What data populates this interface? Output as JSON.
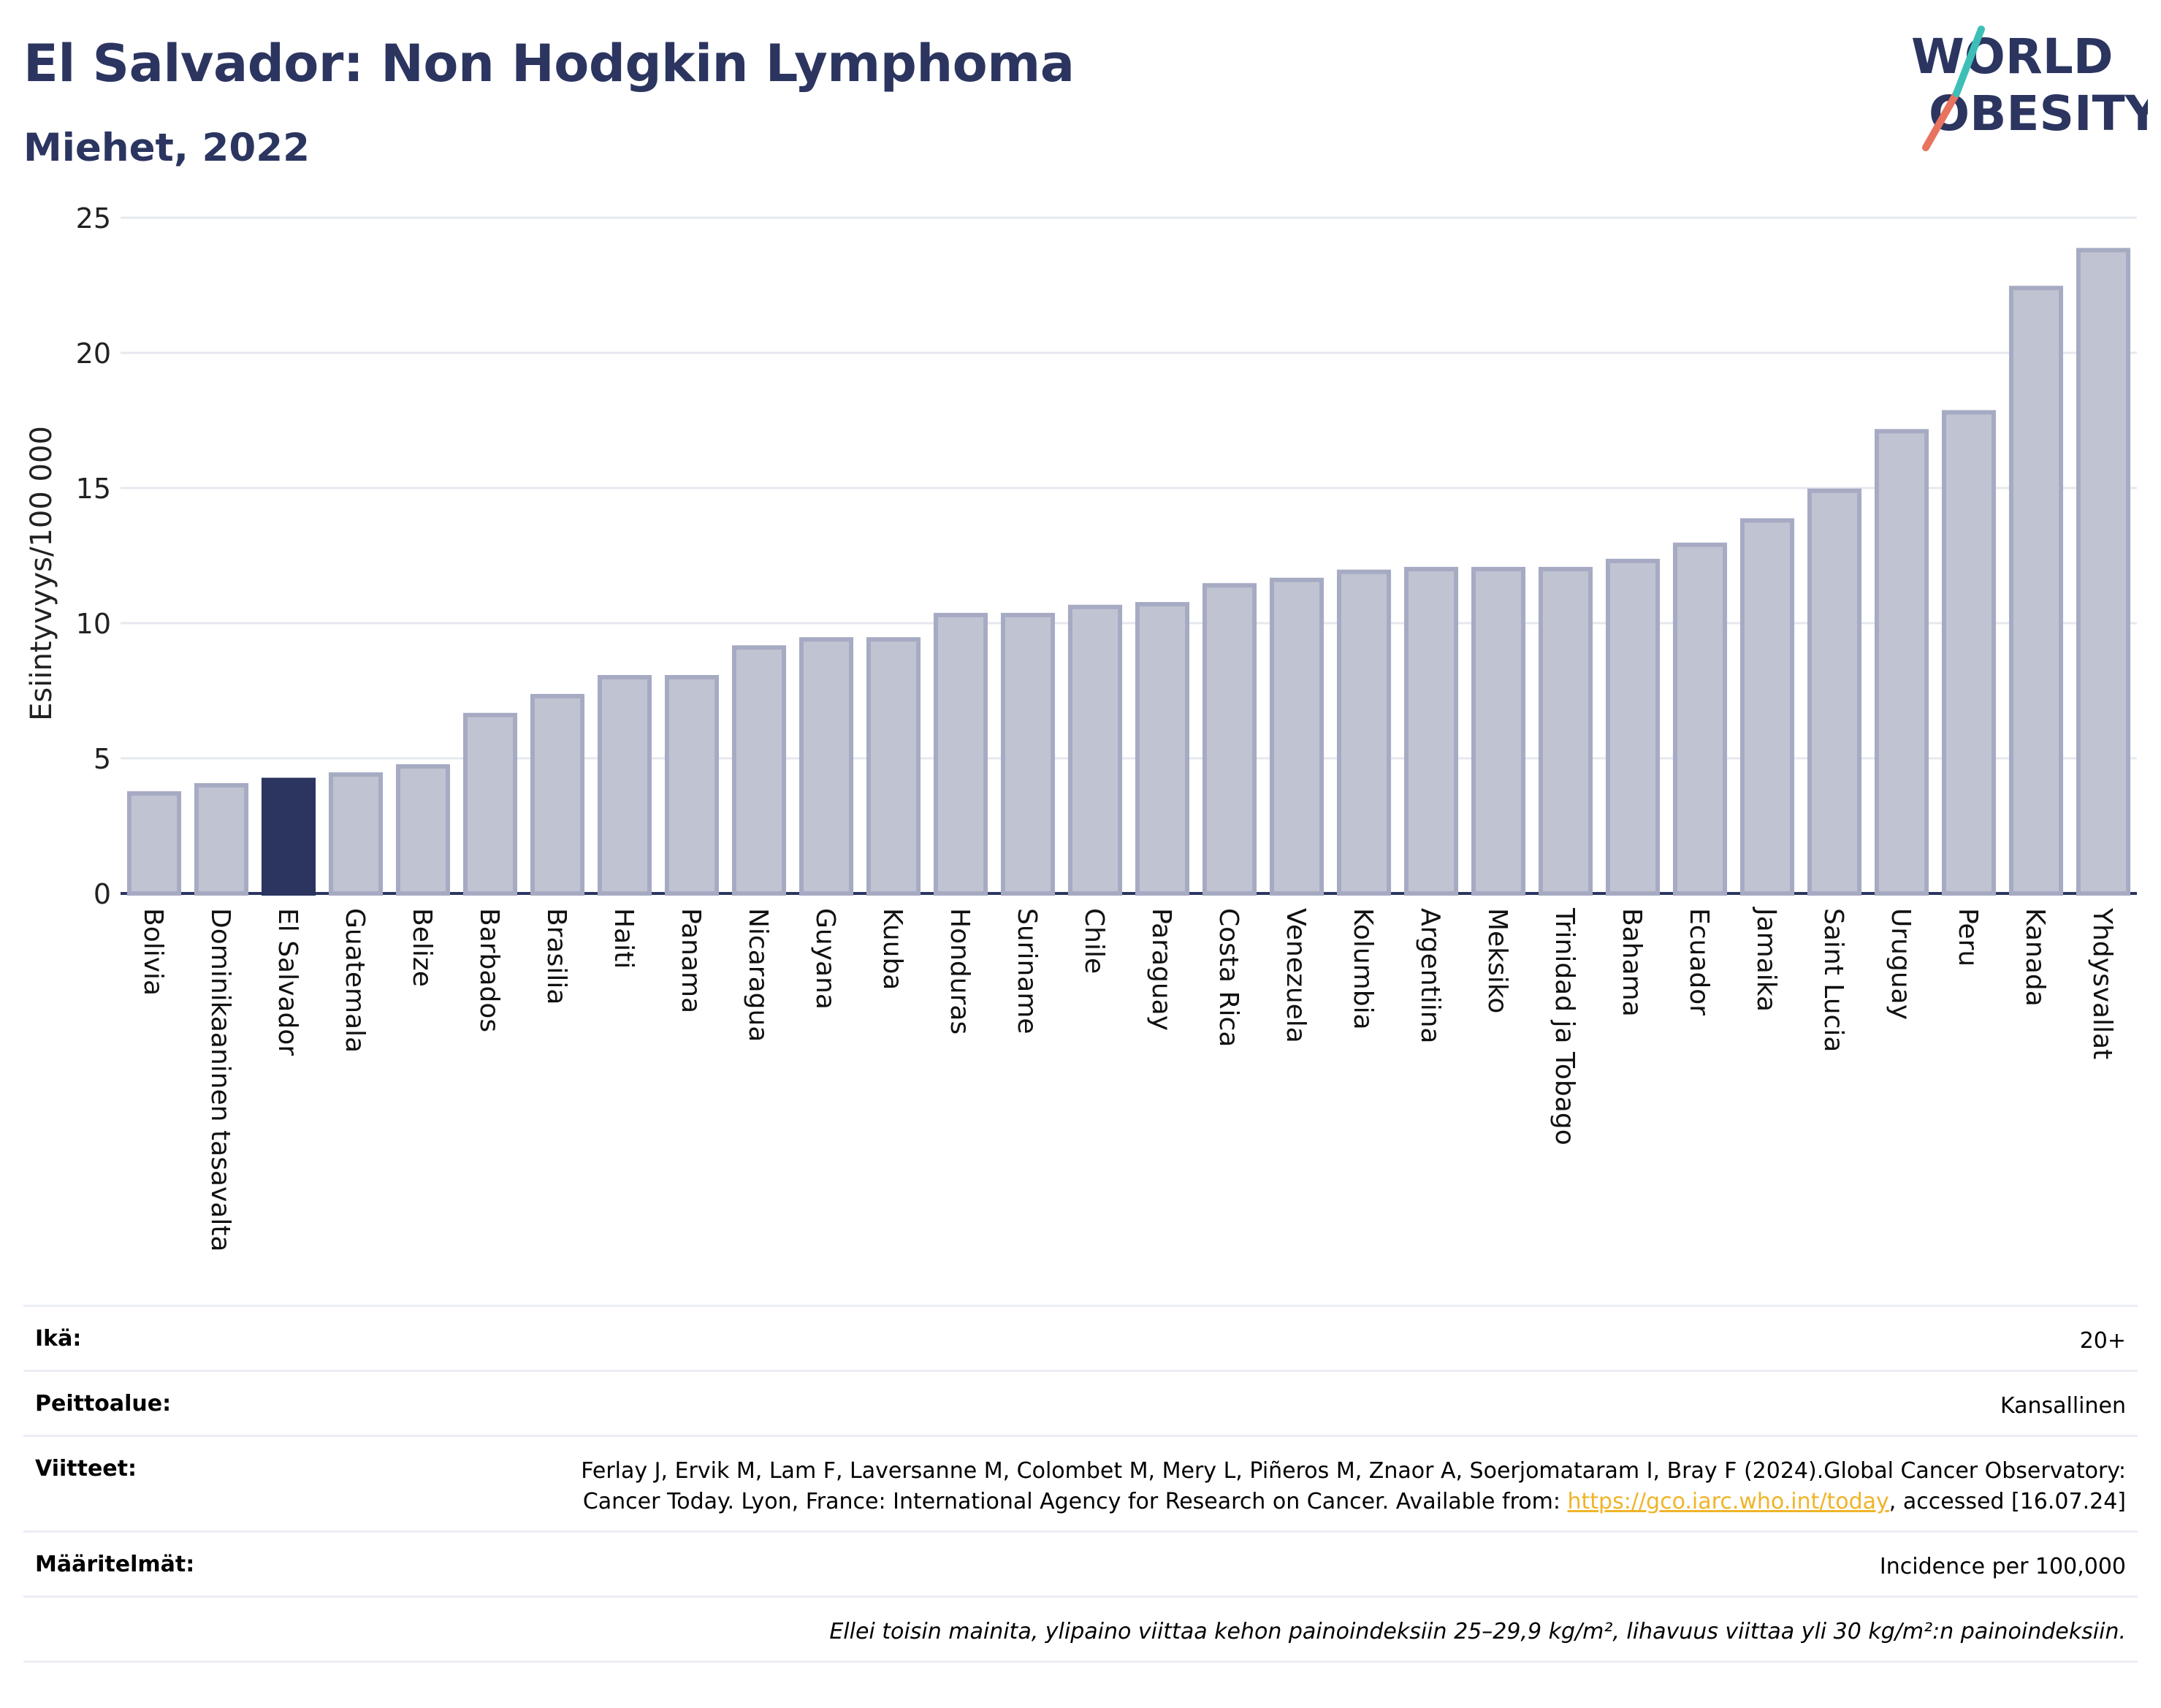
{
  "header": {
    "title": "El Salvador: Non Hodgkin Lymphoma",
    "subtitle": "Miehet, 2022"
  },
  "logo": {
    "line1": "WORLD",
    "line2": "OBESITY"
  },
  "colors": {
    "highlight": "#2b3560",
    "bar": "#c0c3d1",
    "bar_border": "#a6abc3",
    "title": "#2b3560"
  },
  "chart_data": {
    "type": "bar",
    "ylabel": "Esiintyvyys/100 000",
    "ylim": [
      0,
      25
    ],
    "yticks": [
      0,
      5,
      10,
      15,
      20,
      25
    ],
    "grid": true,
    "highlight": "El Salvador",
    "categories": [
      "Bolivia",
      "Dominikaaninen tasavalta",
      "El Salvador",
      "Guatemala",
      "Belize",
      "Barbados",
      "Brasilia",
      "Haiti",
      "Panama",
      "Nicaragua",
      "Guyana",
      "Kuuba",
      "Honduras",
      "Suriname",
      "Chile",
      "Paraguay",
      "Costa Rica",
      "Venezuela",
      "Kolumbia",
      "Argentiina",
      "Meksiko",
      "Trinidad ja Tobago",
      "Bahama",
      "Ecuador",
      "Jamaika",
      "Saint Lucia",
      "Uruguay",
      "Peru",
      "Kanada",
      "Yhdysvallat"
    ],
    "values": [
      3.7,
      4.0,
      4.2,
      4.4,
      4.7,
      6.6,
      7.3,
      8.0,
      8.0,
      9.1,
      9.4,
      9.4,
      10.3,
      10.3,
      10.6,
      10.7,
      11.4,
      11.6,
      11.9,
      12.0,
      12.0,
      12.0,
      12.3,
      12.9,
      13.8,
      14.9,
      17.1,
      17.8,
      22.4,
      23.8
    ]
  },
  "meta": {
    "age_label": "Ikä:",
    "age_value": "20+",
    "coverage_label": "Peittoalue:",
    "coverage_value": "Kansallinen",
    "refs_label": "Viitteet:",
    "refs_text_1": "Ferlay J, Ervik M, Lam F, Laversanne M, Colombet M, Mery L, Piñeros M, Znaor A, Soerjomataram I, Bray F (2024).Global Cancer Observatory: Cancer Today. Lyon, France: International Agency for Research on Cancer. Available from: ",
    "refs_link": "https://gco.iarc.who.int/today",
    "refs_text_2": ", accessed [16.07.24]",
    "definitions_label": "Määritelmät:",
    "definitions_value": "Incidence per 100,000",
    "note": "Ellei toisin mainita, ylipaino viittaa kehon painoindeksiin 25–29,9 kg/m², lihavuus viittaa yli 30 kg/m²:n painoindeksiin."
  }
}
